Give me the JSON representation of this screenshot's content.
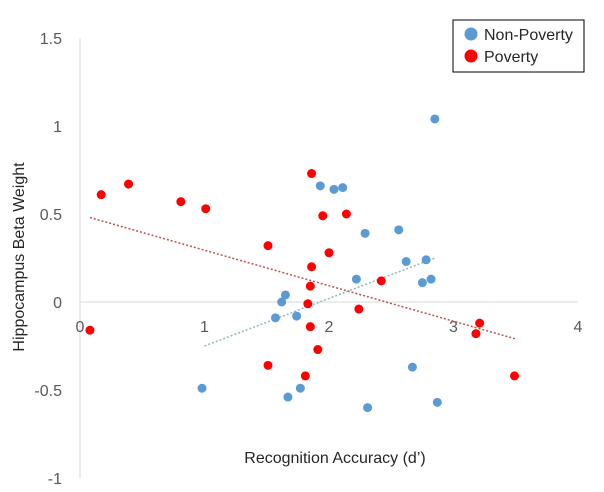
{
  "chart_data": {
    "type": "scatter",
    "title": "",
    "xlabel": "Recognition Accuracy (d’)",
    "ylabel": "Hippocampus Beta Weight",
    "xlim": [
      0,
      4
    ],
    "ylim": [
      -1,
      1.5
    ],
    "xticks": [
      0,
      1,
      2,
      3,
      4
    ],
    "yticks": [
      -1,
      -0.5,
      0,
      0.5,
      1,
      1.5
    ],
    "xtick_labels": [
      "0",
      "1",
      "2",
      "3",
      "4"
    ],
    "ytick_labels": [
      "-1",
      "-0.5",
      "0",
      "0.5",
      "1",
      "1.5"
    ],
    "grid": false,
    "legend_position": "top-right",
    "series": [
      {
        "name": "Non-Poverty",
        "color": "#5b9bd5",
        "trendline_color": "#8fb9b2",
        "trendline": {
          "x1": 1.0,
          "y1": -0.25,
          "x2": 2.85,
          "y2": 0.25
        },
        "points": [
          {
            "x": 0.98,
            "y": -0.49
          },
          {
            "x": 1.57,
            "y": -0.09
          },
          {
            "x": 1.62,
            "y": 0.0
          },
          {
            "x": 1.65,
            "y": 0.04
          },
          {
            "x": 1.67,
            "y": -0.54
          },
          {
            "x": 1.74,
            "y": -0.08
          },
          {
            "x": 1.77,
            "y": -0.49
          },
          {
            "x": 1.93,
            "y": 0.66
          },
          {
            "x": 2.04,
            "y": 0.64
          },
          {
            "x": 2.11,
            "y": 0.65
          },
          {
            "x": 2.22,
            "y": 0.13
          },
          {
            "x": 2.29,
            "y": 0.39
          },
          {
            "x": 2.31,
            "y": -0.6
          },
          {
            "x": 2.56,
            "y": 0.41
          },
          {
            "x": 2.62,
            "y": 0.23
          },
          {
            "x": 2.67,
            "y": -0.37
          },
          {
            "x": 2.75,
            "y": 0.11
          },
          {
            "x": 2.78,
            "y": 0.24
          },
          {
            "x": 2.82,
            "y": 0.13
          },
          {
            "x": 2.85,
            "y": 1.04
          },
          {
            "x": 2.87,
            "y": -0.57
          }
        ]
      },
      {
        "name": "Poverty",
        "color": "#ff0000",
        "trendline_color": "#c0504d",
        "trendline": {
          "x1": 0.08,
          "y1": 0.48,
          "x2": 3.5,
          "y2": -0.21
        },
        "points": [
          {
            "x": 0.08,
            "y": -0.16
          },
          {
            "x": 0.17,
            "y": 0.61
          },
          {
            "x": 0.39,
            "y": 0.67
          },
          {
            "x": 0.81,
            "y": 0.57
          },
          {
            "x": 1.01,
            "y": 0.53
          },
          {
            "x": 1.51,
            "y": 0.32
          },
          {
            "x": 1.51,
            "y": -0.36
          },
          {
            "x": 1.81,
            "y": -0.42
          },
          {
            "x": 1.83,
            "y": -0.01
          },
          {
            "x": 1.85,
            "y": 0.09
          },
          {
            "x": 1.85,
            "y": -0.14
          },
          {
            "x": 1.86,
            "y": 0.2
          },
          {
            "x": 1.86,
            "y": 0.73
          },
          {
            "x": 1.91,
            "y": -0.27
          },
          {
            "x": 1.95,
            "y": 0.49
          },
          {
            "x": 2.0,
            "y": 0.28
          },
          {
            "x": 2.14,
            "y": 0.5
          },
          {
            "x": 2.24,
            "y": -0.04
          },
          {
            "x": 2.42,
            "y": 0.12
          },
          {
            "x": 3.18,
            "y": -0.18
          },
          {
            "x": 3.21,
            "y": -0.12
          },
          {
            "x": 3.49,
            "y": -0.42
          }
        ]
      }
    ]
  }
}
